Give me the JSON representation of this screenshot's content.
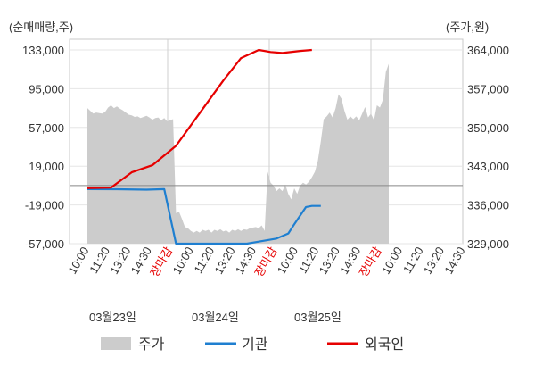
{
  "chart_data": {
    "type": "line",
    "left_unit": "(순매매량,주)",
    "right_unit": "(주가,원)",
    "y_left": {
      "min": -57000,
      "max": 133000,
      "ticks": [
        "133,000",
        "95,000",
        "57,000",
        "19,000",
        "-19,000",
        "-57,000"
      ]
    },
    "y_right": {
      "min": 329000,
      "max": 364000,
      "ticks": [
        "364,000",
        "357,000",
        "350,000",
        "343,000",
        "336,000",
        "329,000"
      ]
    },
    "x_tick_labels": [
      "10:00",
      "11:20",
      "13:20",
      "14:30",
      "장마감",
      "10:00",
      "11:20",
      "13:20",
      "14:30",
      "장마감",
      "10:00",
      "11:20",
      "13:20",
      "14:30",
      "장마감",
      "10:00",
      "11:20",
      "13:20",
      "14:30"
    ],
    "x_tick_highlight": [
      false,
      false,
      false,
      false,
      true,
      false,
      false,
      false,
      false,
      true,
      false,
      false,
      false,
      false,
      true,
      false,
      false,
      false,
      false
    ],
    "dates": [
      "03월23일",
      "03월24일",
      "03월25일"
    ],
    "legend": [
      "주가",
      "기관",
      "외국인"
    ],
    "colors": {
      "price": "#cccccc",
      "institution": "#1f7fd0",
      "foreign": "#e60000"
    },
    "price_series": [
      [
        0,
        353500
      ],
      [
        1,
        353000
      ],
      [
        2,
        352500
      ],
      [
        3,
        352700
      ],
      [
        4,
        352600
      ],
      [
        5,
        352500
      ],
      [
        6,
        352800
      ],
      [
        7,
        353600
      ],
      [
        8,
        354000
      ],
      [
        9,
        353500
      ],
      [
        10,
        353800
      ],
      [
        11,
        353400
      ],
      [
        12,
        353100
      ],
      [
        13,
        352700
      ],
      [
        14,
        352300
      ],
      [
        15,
        352200
      ],
      [
        16,
        351900
      ],
      [
        17,
        352000
      ],
      [
        18,
        351700
      ],
      [
        19,
        351900
      ],
      [
        20,
        352100
      ],
      [
        21,
        351800
      ],
      [
        22,
        351400
      ],
      [
        23,
        351700
      ],
      [
        24,
        351800
      ],
      [
        25,
        351300
      ],
      [
        26,
        351700
      ],
      [
        27,
        351100
      ],
      [
        28,
        351300
      ],
      [
        29,
        351500
      ],
      [
        30,
        334500
      ],
      [
        31,
        334800
      ],
      [
        32,
        333500
      ],
      [
        33,
        332000
      ],
      [
        34,
        331800
      ],
      [
        35,
        331300
      ],
      [
        36,
        331000
      ],
      [
        37,
        331300
      ],
      [
        38,
        331000
      ],
      [
        39,
        331500
      ],
      [
        40,
        331300
      ],
      [
        41,
        331500
      ],
      [
        42,
        331000
      ],
      [
        43,
        331500
      ],
      [
        44,
        331300
      ],
      [
        45,
        331600
      ],
      [
        46,
        331200
      ],
      [
        47,
        331400
      ],
      [
        48,
        331000
      ],
      [
        49,
        331500
      ],
      [
        50,
        331300
      ],
      [
        51,
        331600
      ],
      [
        52,
        331300
      ],
      [
        53,
        331600
      ],
      [
        54,
        331500
      ],
      [
        55,
        331800
      ],
      [
        56,
        331900
      ],
      [
        57,
        332000
      ],
      [
        58,
        331800
      ],
      [
        59,
        332300
      ],
      [
        60,
        331300
      ],
      [
        61,
        342000
      ],
      [
        62,
        340000
      ],
      [
        63,
        339500
      ],
      [
        64,
        338500
      ],
      [
        65,
        339000
      ],
      [
        66,
        338500
      ],
      [
        67,
        339700
      ],
      [
        68,
        338000
      ],
      [
        69,
        337000
      ],
      [
        70,
        339000
      ],
      [
        71,
        338000
      ],
      [
        72,
        339500
      ],
      [
        73,
        340000
      ],
      [
        74,
        339700
      ],
      [
        75,
        340200
      ],
      [
        76,
        341000
      ],
      [
        77,
        342000
      ],
      [
        78,
        344000
      ],
      [
        79,
        347500
      ],
      [
        80,
        351500
      ],
      [
        81,
        352000
      ],
      [
        82,
        352700
      ],
      [
        83,
        351800
      ],
      [
        84,
        353500
      ],
      [
        85,
        356000
      ],
      [
        86,
        355200
      ],
      [
        87,
        353000
      ],
      [
        88,
        351400
      ],
      [
        89,
        352000
      ],
      [
        90,
        351500
      ],
      [
        91,
        352000
      ],
      [
        92,
        351300
      ],
      [
        93,
        352500
      ],
      [
        94,
        353700
      ],
      [
        95,
        351800
      ],
      [
        96,
        352500
      ],
      [
        97,
        351300
      ],
      [
        98,
        354000
      ],
      [
        99,
        353600
      ],
      [
        100,
        355000
      ],
      [
        101,
        360000
      ],
      [
        102,
        361500
      ]
    ],
    "institution_series": [
      [
        0,
        -3500
      ],
      [
        10,
        -3600
      ],
      [
        20,
        -4000
      ],
      [
        26,
        -3500
      ],
      [
        30,
        -57000
      ],
      [
        40,
        -57000
      ],
      [
        54,
        -57000
      ],
      [
        58,
        -55000
      ],
      [
        64,
        -52000
      ],
      [
        68,
        -47000
      ],
      [
        70,
        -38000
      ],
      [
        74,
        -21000
      ],
      [
        76,
        -20000
      ],
      [
        79,
        -20000
      ]
    ],
    "foreign_series": [
      [
        0,
        -2500
      ],
      [
        8,
        -2000
      ],
      [
        15,
        13000
      ],
      [
        22,
        20000
      ],
      [
        30,
        39000
      ],
      [
        38,
        71000
      ],
      [
        46,
        103000
      ],
      [
        52,
        125000
      ],
      [
        58,
        133000
      ],
      [
        62,
        131000
      ],
      [
        66,
        130000
      ],
      [
        72,
        132000
      ],
      [
        76,
        133000
      ]
    ]
  }
}
